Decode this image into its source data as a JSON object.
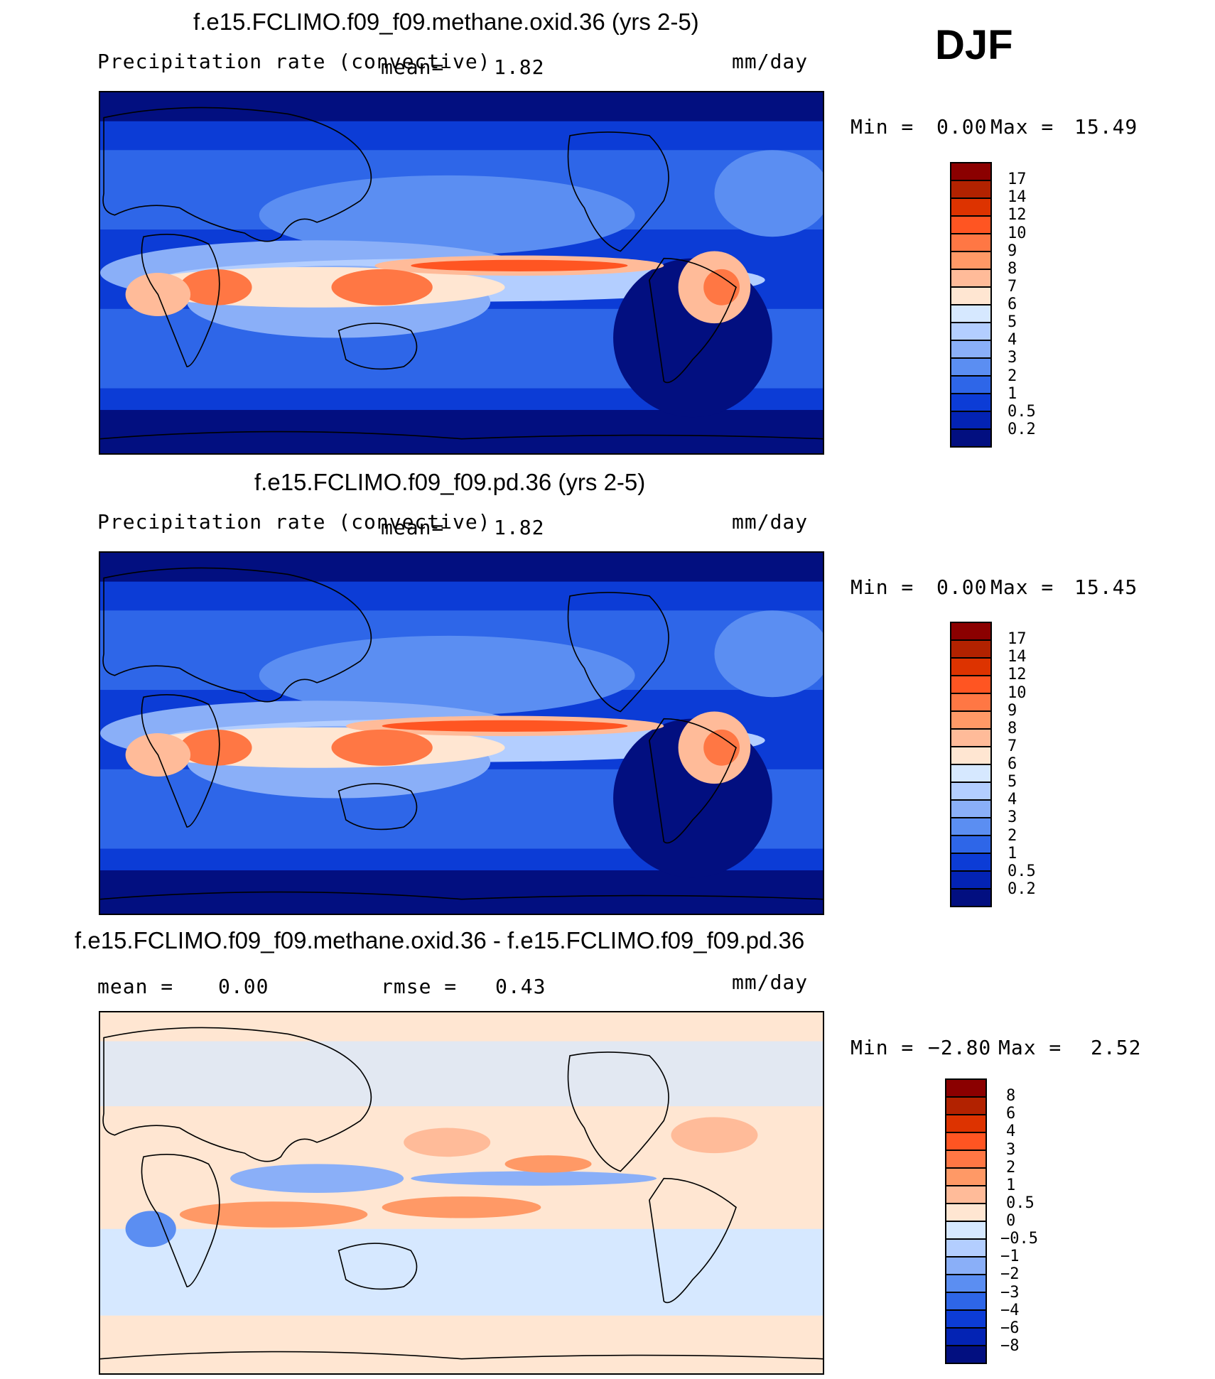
{
  "season": "DJF",
  "panels": [
    {
      "title": "f.e15.FCLIMO.f09_f09.methane.oxid.36 (yrs 2-5)",
      "variable": "Precipitation rate (convective)",
      "mean_label": "mean=",
      "mean_value": "1.82",
      "units": "mm/day",
      "min_label": "Min =",
      "min_value": "0.00",
      "max_label": "Max =",
      "max_value": "15.49",
      "colorbar": {
        "labels": [
          "17",
          "14",
          "12",
          "10",
          "9",
          "8",
          "7",
          "6",
          "5",
          "4",
          "3",
          "2",
          "1",
          "0.5",
          "0.2"
        ],
        "colors": [
          "#8b0000",
          "#b22200",
          "#dd3300",
          "#ff5522",
          "#ff7744",
          "#ff9966",
          "#ffbb99",
          "#ffe6d2",
          "#d6e8ff",
          "#b3ceff",
          "#8aaff8",
          "#5b8ef2",
          "#2e66e8",
          "#0c3cd6",
          "#0323b4",
          "#020f80"
        ]
      }
    },
    {
      "title": "f.e15.FCLIMO.f09_f09.pd.36 (yrs 2-5)",
      "variable": "Precipitation rate (convective)",
      "mean_label": "mean=",
      "mean_value": "1.82",
      "units": "mm/day",
      "min_label": "Min =",
      "min_value": "0.00",
      "max_label": "Max =",
      "max_value": "15.45",
      "colorbar": {
        "labels": [
          "17",
          "14",
          "12",
          "10",
          "9",
          "8",
          "7",
          "6",
          "5",
          "4",
          "3",
          "2",
          "1",
          "0.5",
          "0.2"
        ],
        "colors": [
          "#8b0000",
          "#b22200",
          "#dd3300",
          "#ff5522",
          "#ff7744",
          "#ff9966",
          "#ffbb99",
          "#ffe6d2",
          "#d6e8ff",
          "#b3ceff",
          "#8aaff8",
          "#5b8ef2",
          "#2e66e8",
          "#0c3cd6",
          "#0323b4",
          "#020f80"
        ]
      }
    },
    {
      "title": "f.e15.FCLIMO.f09_f09.methane.oxid.36 - f.e15.FCLIMO.f09_f09.pd.36",
      "mean_label": "mean =",
      "mean_value": "0.00",
      "rmse_label": "rmse =",
      "rmse_value": "0.43",
      "units": "mm/day",
      "min_label": "Min =",
      "min_value": "−2.80",
      "max_label": "Max =",
      "max_value": "2.52",
      "colorbar": {
        "labels": [
          "8",
          "6",
          "4",
          "3",
          "2",
          "1",
          "0.5",
          "0",
          "−0.5",
          "−1",
          "−2",
          "−3",
          "−4",
          "−6",
          "−8"
        ],
        "colors": [
          "#8b0000",
          "#b22200",
          "#dd3300",
          "#ff5522",
          "#ff7744",
          "#ff9966",
          "#ffbb99",
          "#ffe6d2",
          "#d6e8ff",
          "#b3ceff",
          "#8aaff8",
          "#5b8ef2",
          "#2e66e8",
          "#0c3cd6",
          "#0323b4",
          "#020f80"
        ]
      }
    }
  ]
}
